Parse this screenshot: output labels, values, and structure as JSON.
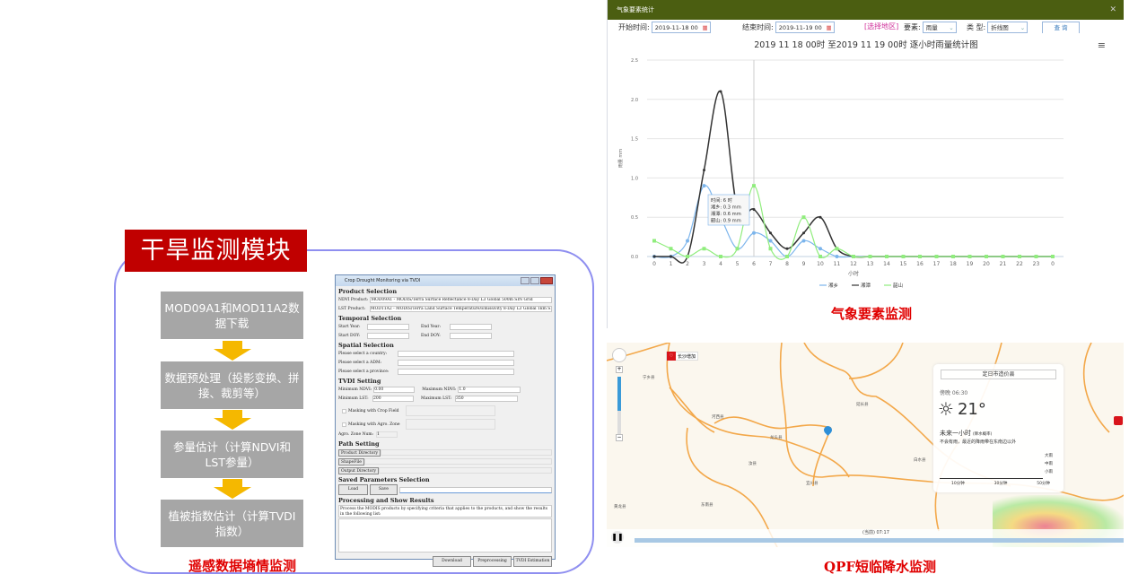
{
  "left": {
    "module_title": "干旱监测模块",
    "flow_steps": [
      "MOD09A1和MOD11A2数据下载",
      "数据预处理（投影变换、拼接、裁剪等）",
      "参量估计（计算NDVI和LST参量）",
      "植被指数估计（计算TVDI指数）"
    ],
    "caption": "遥感数据墒情监测",
    "accent": "#c00000",
    "arrow_color": "#f5b800"
  },
  "dialog": {
    "title": "Crop Drought Monitoring via TVDI",
    "product_section": "Product Selection",
    "ndvi_label": "NDVI Product:",
    "ndvi_value": "MOD09A1 - MODIS/Terra Surface Reflectance 8-Day L3 Global 500m SIN Grid",
    "lst_label": "LST Product:",
    "lst_value": "MOD11A2 - MODIS/Terra Land Surface Temperature/Emissivity 8-Day L3 Global 1km SIN Grid",
    "temporal_section": "Temporal Selection",
    "start_year": "Start Year:",
    "end_year": "End Year:",
    "start_doy": "Start DOY:",
    "end_doy": "End DOY:",
    "spatial_section": "Spatial Selection",
    "country": "Please select a country:",
    "adm": "Please select a ADM:",
    "province": "Please select a province:",
    "tvdi_section": "TVDI Setting",
    "min_ndvi": "Minimum NDVI:",
    "min_ndvi_val": "0.00",
    "max_ndvi": "Maximum NDVI:",
    "max_ndvi_val": "1.0",
    "min_lst": "Minimum LST:",
    "min_lst_val": "200",
    "max_lst": "Maximum LST:",
    "max_lst_val": "350",
    "mask_crop": "Masking with Crop Field",
    "mask_agro": "Masking with Agro. Zone",
    "agro_zone": "Agro. Zone Num:",
    "agro_zone_val": "1",
    "path_section": "Path Setting",
    "product_dir": "Product Directory",
    "shapefile": "ShapeFile",
    "output_dir": "Output Directory",
    "saved_section": "Saved Parameters Selection",
    "load": "Load",
    "save": "Save",
    "processing_section": "Processing and Show Results",
    "processing_text": "Process the MODIS products by specifying criteria that applies to the products, and show the results in the following list:",
    "download": "Download",
    "preprocessing": "Preprocessing",
    "tvdi_estimation": "TVDI Estimation"
  },
  "chart_panel": {
    "window_title": "气象要素统计",
    "start_label": "开始时间:",
    "start_value": "2019-11-18 00",
    "end_label": "结束时间:",
    "end_value": "2019-11-19 00",
    "region_link": "[选择地区]",
    "element_label": "要素:",
    "element_value": "雨量",
    "type_label": "类 型:",
    "type_value": "折线图",
    "query": "查 询",
    "caption": "气象要素监测",
    "header_color": "#4b5e11"
  },
  "chart_data": {
    "type": "line",
    "title": "2019 11 18 00时 至2019 11 19 00时 逐小时雨量统计图",
    "xlabel": "小时",
    "ylabel": "雨量 mm",
    "categories": [
      "0",
      "1",
      "2",
      "3",
      "4",
      "5",
      "6",
      "7",
      "8",
      "9",
      "10",
      "11",
      "12",
      "13",
      "14",
      "15",
      "16",
      "17",
      "18",
      "19",
      "20",
      "21",
      "22",
      "23",
      "0"
    ],
    "ylim": [
      0,
      2.5
    ],
    "yticks": [
      "0.0",
      "0.5",
      "1.0",
      "1.5",
      "2.0",
      "2.5"
    ],
    "grid": true,
    "legend": "bottom",
    "series": [
      {
        "name": "湘乡",
        "color": "#7cb5ec",
        "values": [
          0,
          0,
          0.2,
          0.9,
          0.5,
          0.1,
          0.3,
          0.2,
          0,
          0.2,
          0.1,
          0,
          0,
          0,
          0,
          0,
          0,
          0,
          0,
          0,
          0,
          0,
          0,
          0,
          0
        ]
      },
      {
        "name": "湘潭",
        "color": "#333333",
        "values": [
          0,
          0,
          0,
          1.1,
          2.1,
          0.6,
          0.6,
          0.3,
          0.1,
          0.3,
          0.5,
          0.1,
          0,
          0,
          0,
          0,
          0,
          0,
          0,
          0,
          0,
          0,
          0,
          0,
          0
        ]
      },
      {
        "name": "韶山",
        "color": "#90ed7d",
        "values": [
          0.2,
          0.1,
          0,
          0.1,
          0,
          0.1,
          0.9,
          0.1,
          0,
          0.5,
          0,
          0.1,
          0,
          0,
          0,
          0,
          0,
          0,
          0,
          0,
          0,
          0,
          0,
          0,
          0
        ]
      }
    ],
    "tooltip": [
      "时间: 6 时",
      "湘乡: 0.3 mm",
      "湘潭: 0.6 mm",
      "韶山: 0.9 mm"
    ]
  },
  "map": {
    "caption": "QPF短临降水监测",
    "alert": "长沙增加",
    "time_label": "(当前) 07:17",
    "place_labels": [
      "宁乡县",
      "河西县",
      "龙头县",
      "东南县",
      "汝县",
      "宜川县",
      "延长县",
      "黄龙县",
      "白水县"
    ],
    "weather": {
      "location": "定日市造价县",
      "time": "傍晚 06:30",
      "temp": "21°",
      "next_hour": "未来一小时",
      "next_hour_note": "(降水概率)",
      "summary": "不会有雨，最近的降雨带在东南边以外",
      "levels": [
        "大雨",
        "中雨",
        "小雨"
      ],
      "ticks": [
        "10分钟",
        "30分钟",
        "50分钟"
      ]
    }
  }
}
